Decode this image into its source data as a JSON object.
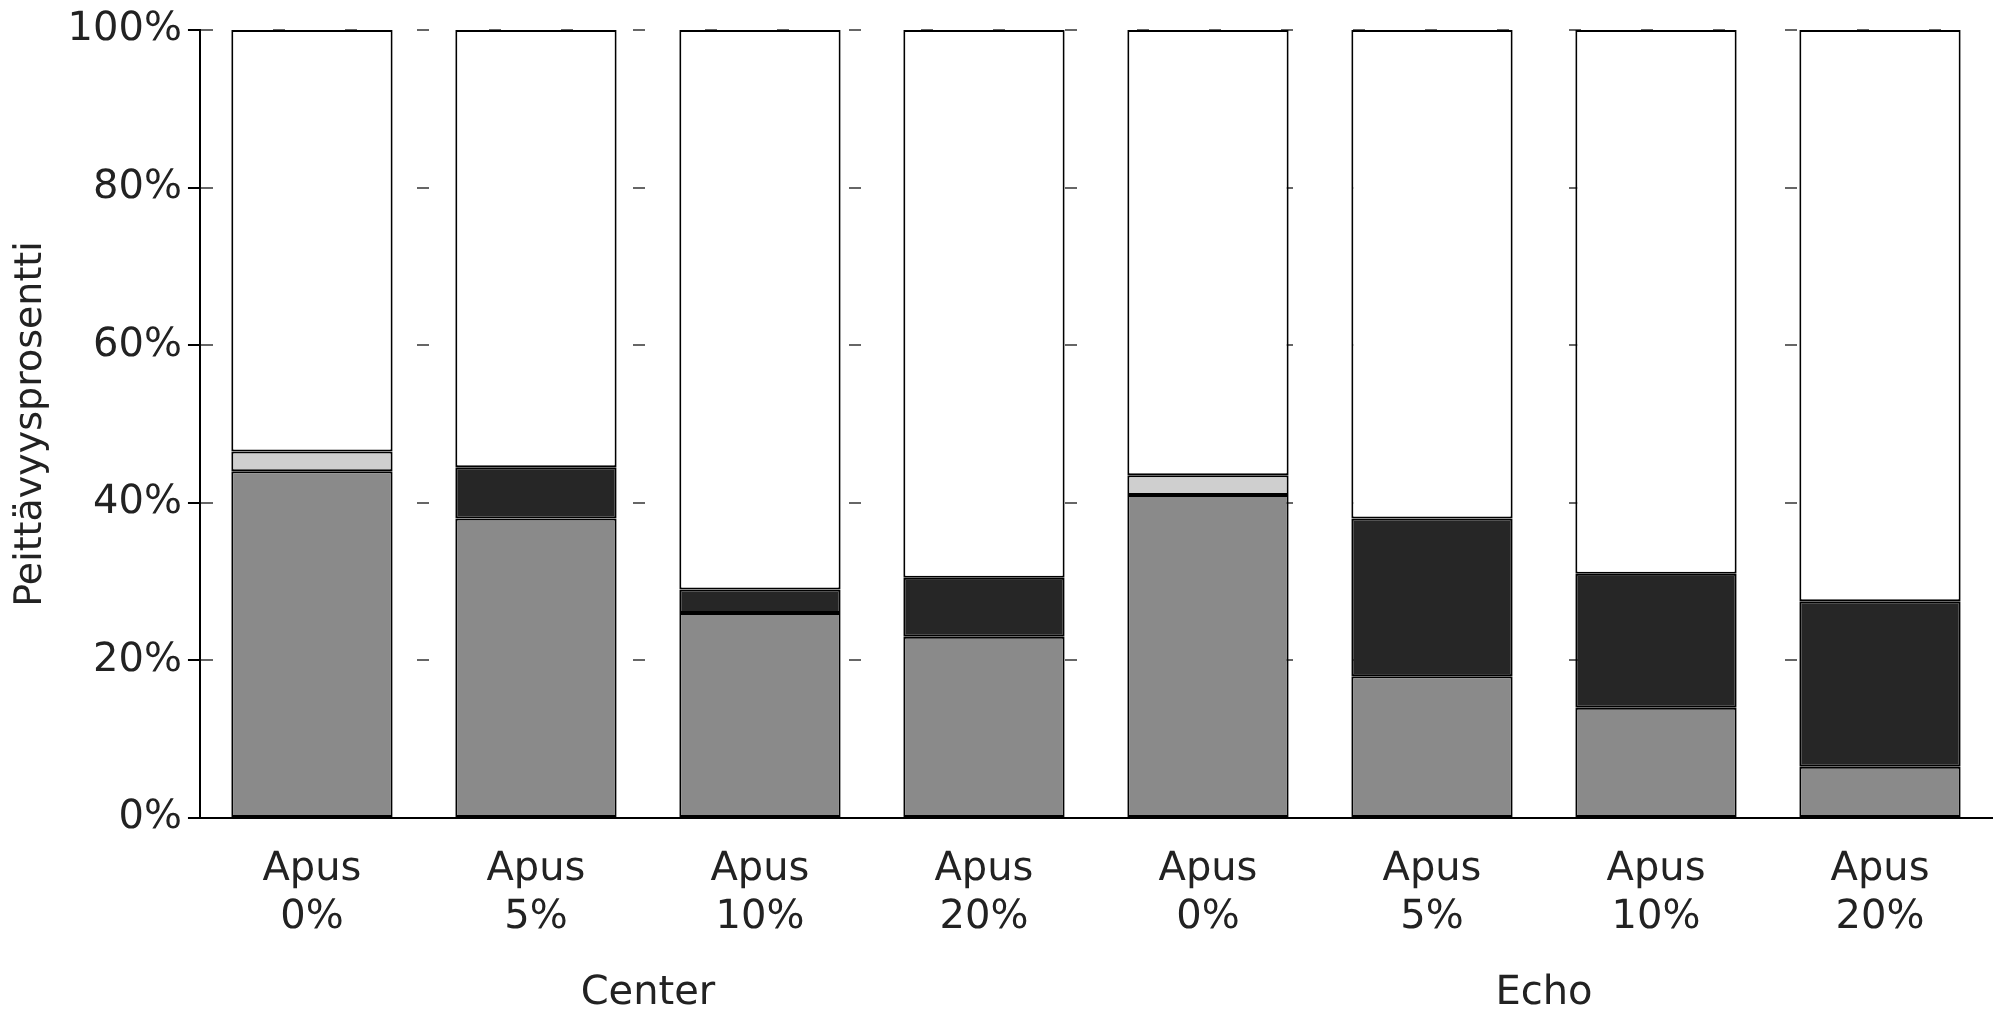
{
  "chart_data": {
    "type": "bar",
    "stacked": true,
    "ylabel": "Peittävyysprosentti",
    "categories": [
      "Apus 0%",
      "Apus 5%",
      "Apus 10%",
      "Apus 20%",
      "Apus 0%",
      "Apus 5%",
      "Apus 10%",
      "Apus 20%"
    ],
    "series": [
      {
        "color": "#8a8a8a",
        "values": [
          44,
          38,
          26,
          23,
          41,
          18,
          14,
          6.5
        ]
      },
      {
        "color": "#cfcfcf",
        "values": [
          2.5,
          null,
          null,
          null,
          2.5,
          null,
          null,
          null
        ]
      },
      {
        "color": "#262626",
        "values": [
          null,
          6.5,
          3,
          7.5,
          null,
          20,
          17,
          21
        ]
      },
      {
        "color": "#ffffff",
        "values": [
          53.5,
          55.5,
          71,
          69.5,
          56.5,
          62,
          69,
          72.5
        ]
      }
    ],
    "ylim": [
      0,
      100
    ],
    "yticks": [
      {
        "value": 0,
        "label": "0%"
      },
      {
        "value": 20,
        "label": "20%"
      },
      {
        "value": 40,
        "label": "40%"
      },
      {
        "value": 60,
        "label": "60%"
      },
      {
        "value": 80,
        "label": "80%"
      },
      {
        "value": 100,
        "label": "100%"
      }
    ],
    "grid": "y",
    "legend": false,
    "annotations": [
      "Center",
      "Echo"
    ]
  }
}
